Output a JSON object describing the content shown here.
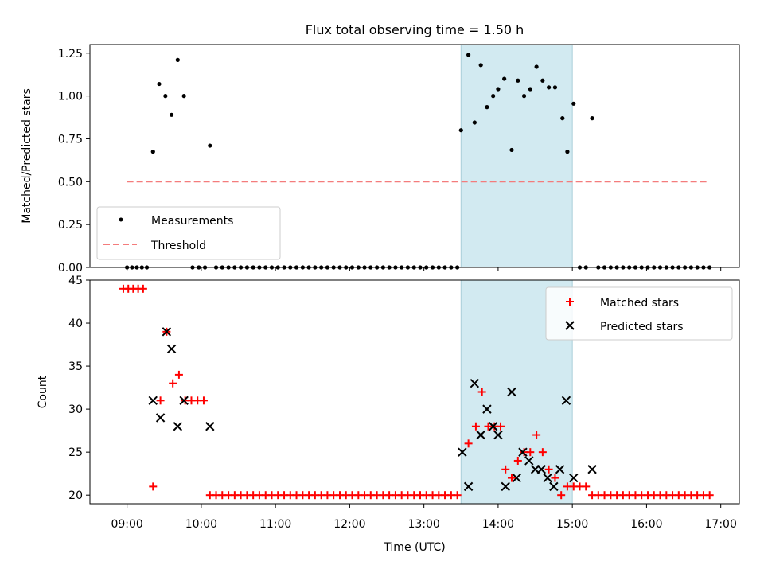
{
  "chart_data": [
    {
      "type": "scatter",
      "title": "Flux total observing time = 1.50 h",
      "ylabel": "Matched/Predicted stars",
      "xlabel": "",
      "xlim": [
        8.5,
        17.25
      ],
      "ylim": [
        0,
        1.3
      ],
      "yticks": [
        0,
        0.25,
        0.5,
        0.75,
        1.0,
        1.25
      ],
      "ytick_labels": [
        "0.00",
        "0.25",
        "0.50",
        "0.75",
        "1.00",
        "1.25"
      ],
      "threshold": 0.5,
      "threshold_x": [
        9.0,
        16.83
      ],
      "shaded_span": [
        13.5,
        15.0
      ],
      "legend": {
        "placement": "lower-left",
        "entries": [
          "Measurements",
          "Threshold"
        ]
      },
      "series": [
        {
          "name": "Measurements",
          "points": [
            [
              9.0,
              0
            ],
            [
              9.067,
              0
            ],
            [
              9.133,
              0
            ],
            [
              9.2,
              0
            ],
            [
              9.267,
              0
            ],
            [
              9.35,
              0.675
            ],
            [
              9.433,
              1.07
            ],
            [
              9.517,
              1.0
            ],
            [
              9.6,
              0.89
            ],
            [
              9.683,
              1.21
            ],
            [
              9.767,
              1.0
            ],
            [
              9.883,
              0
            ],
            [
              9.967,
              0
            ],
            [
              10.05,
              0
            ],
            [
              10.117,
              0.71
            ],
            [
              10.2,
              0
            ],
            [
              10.283,
              0
            ],
            [
              10.367,
              0
            ],
            [
              10.45,
              0
            ],
            [
              10.533,
              0
            ],
            [
              10.617,
              0
            ],
            [
              10.7,
              0
            ],
            [
              10.783,
              0
            ],
            [
              10.867,
              0
            ],
            [
              10.95,
              0
            ],
            [
              11.033,
              0
            ],
            [
              11.117,
              0
            ],
            [
              11.2,
              0
            ],
            [
              11.283,
              0
            ],
            [
              11.367,
              0
            ],
            [
              11.45,
              0
            ],
            [
              11.533,
              0
            ],
            [
              11.617,
              0
            ],
            [
              11.7,
              0
            ],
            [
              11.783,
              0
            ],
            [
              11.867,
              0
            ],
            [
              11.95,
              0
            ],
            [
              12.033,
              0
            ],
            [
              12.117,
              0
            ],
            [
              12.2,
              0
            ],
            [
              12.283,
              0
            ],
            [
              12.367,
              0
            ],
            [
              12.45,
              0
            ],
            [
              12.533,
              0
            ],
            [
              12.617,
              0
            ],
            [
              12.7,
              0
            ],
            [
              12.783,
              0
            ],
            [
              12.867,
              0
            ],
            [
              12.95,
              0
            ],
            [
              13.033,
              0
            ],
            [
              13.117,
              0
            ],
            [
              13.2,
              0
            ],
            [
              13.283,
              0
            ],
            [
              13.367,
              0
            ],
            [
              13.45,
              0
            ],
            [
              13.5,
              0.8
            ],
            [
              13.6,
              1.24
            ],
            [
              13.683,
              0.845
            ],
            [
              13.767,
              1.18
            ],
            [
              13.85,
              0.935
            ],
            [
              13.933,
              1.0
            ],
            [
              14.0,
              1.04
            ],
            [
              14.083,
              1.1
            ],
            [
              14.183,
              0.685
            ],
            [
              14.267,
              1.09
            ],
            [
              14.35,
              1.0
            ],
            [
              14.433,
              1.04
            ],
            [
              14.517,
              1.17
            ],
            [
              14.6,
              1.09
            ],
            [
              14.683,
              1.05
            ],
            [
              14.767,
              1.05
            ],
            [
              14.867,
              0.87
            ],
            [
              14.933,
              0.675
            ],
            [
              15.017,
              0.955
            ],
            [
              15.1,
              0
            ],
            [
              15.183,
              0
            ],
            [
              15.267,
              0.87
            ],
            [
              15.35,
              0
            ],
            [
              15.433,
              0
            ],
            [
              15.517,
              0
            ],
            [
              15.6,
              0
            ],
            [
              15.683,
              0
            ],
            [
              15.767,
              0
            ],
            [
              15.85,
              0
            ],
            [
              15.933,
              0
            ],
            [
              16.017,
              0
            ],
            [
              16.1,
              0
            ],
            [
              16.183,
              0
            ],
            [
              16.267,
              0
            ],
            [
              16.35,
              0
            ],
            [
              16.433,
              0
            ],
            [
              16.517,
              0
            ],
            [
              16.6,
              0
            ],
            [
              16.683,
              0
            ],
            [
              16.767,
              0
            ],
            [
              16.85,
              0
            ]
          ]
        }
      ]
    },
    {
      "type": "scatter",
      "title": "",
      "ylabel": "Count",
      "xlabel": "Time (UTC)",
      "xlim": [
        8.5,
        17.25
      ],
      "ylim": [
        19,
        45
      ],
      "yticks": [
        20,
        25,
        30,
        35,
        40,
        45
      ],
      "ytick_labels": [
        "20",
        "25",
        "30",
        "35",
        "40",
        "45"
      ],
      "xticks": [
        9,
        10,
        11,
        12,
        13,
        14,
        15,
        16,
        17
      ],
      "xtick_labels": [
        "09:00",
        "10:00",
        "11:00",
        "12:00",
        "13:00",
        "14:00",
        "15:00",
        "16:00",
        "17:00"
      ],
      "shaded_span": [
        13.5,
        15.0
      ],
      "legend": {
        "placement": "top-right",
        "entries": [
          "Matched stars",
          "Predicted stars"
        ]
      },
      "series": [
        {
          "name": "Matched stars",
          "points": [
            [
              8.95,
              44
            ],
            [
              9.017,
              44
            ],
            [
              9.083,
              44
            ],
            [
              9.15,
              44
            ],
            [
              9.217,
              44
            ],
            [
              9.35,
              21
            ],
            [
              9.45,
              31
            ],
            [
              9.533,
              39
            ],
            [
              9.617,
              33
            ],
            [
              9.7,
              34
            ],
            [
              9.783,
              31
            ],
            [
              9.867,
              31
            ],
            [
              9.95,
              31
            ],
            [
              10.033,
              31
            ],
            [
              10.117,
              20
            ],
            [
              10.2,
              20
            ],
            [
              10.283,
              20
            ],
            [
              10.367,
              20
            ],
            [
              10.45,
              20
            ],
            [
              10.533,
              20
            ],
            [
              10.617,
              20
            ],
            [
              10.7,
              20
            ],
            [
              10.783,
              20
            ],
            [
              10.867,
              20
            ],
            [
              10.95,
              20
            ],
            [
              11.033,
              20
            ],
            [
              11.117,
              20
            ],
            [
              11.2,
              20
            ],
            [
              11.283,
              20
            ],
            [
              11.367,
              20
            ],
            [
              11.45,
              20
            ],
            [
              11.533,
              20
            ],
            [
              11.617,
              20
            ],
            [
              11.7,
              20
            ],
            [
              11.783,
              20
            ],
            [
              11.867,
              20
            ],
            [
              11.95,
              20
            ],
            [
              12.033,
              20
            ],
            [
              12.117,
              20
            ],
            [
              12.2,
              20
            ],
            [
              12.283,
              20
            ],
            [
              12.367,
              20
            ],
            [
              12.45,
              20
            ],
            [
              12.533,
              20
            ],
            [
              12.617,
              20
            ],
            [
              12.7,
              20
            ],
            [
              12.783,
              20
            ],
            [
              12.867,
              20
            ],
            [
              12.95,
              20
            ],
            [
              13.033,
              20
            ],
            [
              13.117,
              20
            ],
            [
              13.2,
              20
            ],
            [
              13.283,
              20
            ],
            [
              13.367,
              20
            ],
            [
              13.45,
              20
            ],
            [
              13.6,
              26
            ],
            [
              13.7,
              28
            ],
            [
              13.783,
              32
            ],
            [
              13.867,
              28
            ],
            [
              13.95,
              28
            ],
            [
              14.033,
              28
            ],
            [
              14.1,
              23
            ],
            [
              14.183,
              22
            ],
            [
              14.267,
              24
            ],
            [
              14.35,
              25
            ],
            [
              14.433,
              25
            ],
            [
              14.517,
              27
            ],
            [
              14.6,
              25
            ],
            [
              14.683,
              23
            ],
            [
              14.767,
              22
            ],
            [
              14.85,
              20
            ],
            [
              14.933,
              21
            ],
            [
              15.017,
              21
            ],
            [
              15.1,
              21
            ],
            [
              15.183,
              21
            ],
            [
              15.267,
              20
            ],
            [
              15.35,
              20
            ],
            [
              15.433,
              20
            ],
            [
              15.517,
              20
            ],
            [
              15.6,
              20
            ],
            [
              15.683,
              20
            ],
            [
              15.767,
              20
            ],
            [
              15.85,
              20
            ],
            [
              15.933,
              20
            ],
            [
              16.017,
              20
            ],
            [
              16.1,
              20
            ],
            [
              16.183,
              20
            ],
            [
              16.267,
              20
            ],
            [
              16.35,
              20
            ],
            [
              16.433,
              20
            ],
            [
              16.517,
              20
            ],
            [
              16.6,
              20
            ],
            [
              16.683,
              20
            ],
            [
              16.767,
              20
            ],
            [
              16.85,
              20
            ]
          ]
        },
        {
          "name": "Predicted stars",
          "points": [
            [
              9.35,
              31
            ],
            [
              9.45,
              29
            ],
            [
              9.533,
              39
            ],
            [
              9.6,
              37
            ],
            [
              9.683,
              28
            ],
            [
              9.767,
              31
            ],
            [
              10.117,
              28
            ],
            [
              13.517,
              25
            ],
            [
              13.6,
              21
            ],
            [
              13.683,
              33
            ],
            [
              13.767,
              27
            ],
            [
              13.85,
              30
            ],
            [
              13.933,
              28
            ],
            [
              14.0,
              27
            ],
            [
              14.1,
              21
            ],
            [
              14.183,
              32
            ],
            [
              14.25,
              22
            ],
            [
              14.333,
              25
            ],
            [
              14.417,
              24
            ],
            [
              14.5,
              23
            ],
            [
              14.583,
              23
            ],
            [
              14.667,
              22
            ],
            [
              14.75,
              21
            ],
            [
              14.833,
              23
            ],
            [
              14.917,
              31
            ],
            [
              15.017,
              22
            ],
            [
              15.267,
              23
            ]
          ]
        }
      ]
    }
  ]
}
